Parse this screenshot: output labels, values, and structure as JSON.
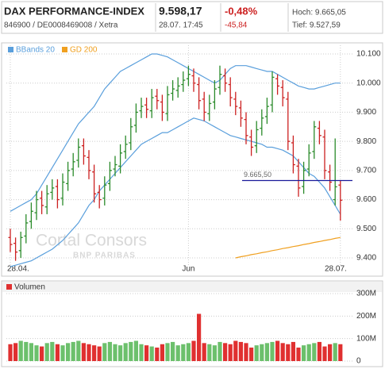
{
  "header": {
    "title": "DAX PERFORMANCE-INDEX",
    "price": "9.598,17",
    "change_pct": "-0,48%",
    "high": "Hoch: 9.665,05",
    "id": "846900 / DE0008469008 / Xetra",
    "time": "28.07. 17:45",
    "change_abs": "-45,84",
    "low": "Tief: 9.527,59"
  },
  "watermark": {
    "line1": "Cortal Consors",
    "line2": "BNP PARIBAS"
  },
  "chart_data": [
    {
      "type": "ohlc",
      "up_color": "#2a8a2a",
      "down_color": "#cc2020",
      "ylim": [
        9370,
        10130
      ],
      "yticks": [
        {
          "value": 9400,
          "label": "9.400"
        },
        {
          "value": 9500,
          "label": "9.500"
        },
        {
          "value": 9600,
          "label": "9.600"
        },
        {
          "value": 9700,
          "label": "9.700"
        },
        {
          "value": 9800,
          "label": "9.800"
        },
        {
          "value": 9900,
          "label": "9.900"
        },
        {
          "value": 10000,
          "label": "10.000"
        },
        {
          "value": 10100,
          "label": "10.100"
        }
      ],
      "grid": true,
      "legend": "top-left",
      "annotation": {
        "value": 9665.5,
        "label": "9.665,50",
        "color": "#1a1a9a"
      },
      "categories": [
        "28.04.",
        null,
        null,
        null,
        null,
        null,
        null,
        null,
        null,
        null,
        null,
        null,
        null,
        null,
        null,
        null,
        null,
        null,
        null,
        null,
        null,
        null,
        null,
        null,
        null,
        null,
        null,
        null,
        null,
        null,
        null,
        null,
        null,
        null,
        "Jun",
        null,
        null,
        null,
        null,
        null,
        null,
        null,
        null,
        null,
        null,
        null,
        null,
        null,
        null,
        null,
        null,
        null,
        null,
        null,
        null,
        null,
        null,
        null,
        null,
        null,
        null,
        null,
        null,
        "28.07."
      ],
      "open": [
        9470,
        9450,
        9425,
        9475,
        9525,
        9555,
        9605,
        9575,
        9625,
        9645,
        9605,
        9655,
        9705,
        9735,
        9785,
        9745,
        9695,
        9625,
        9605,
        9655,
        9705,
        9715,
        9765,
        9795,
        9855,
        9905,
        9925,
        9905,
        9955,
        9935,
        9895,
        9965,
        9975,
        9995,
        10015,
        10025,
        9995,
        9945,
        9895,
        9935,
        9985,
        10025,
        9995,
        9945,
        9915,
        9875,
        9815,
        9785,
        9845,
        9885,
        9925,
        10015,
        9985,
        9945,
        9795,
        9715,
        9645,
        9705,
        9765,
        9845,
        9815,
        9695,
        9600,
        9650
      ],
      "high": [
        9500,
        9470,
        9490,
        9550,
        9590,
        9630,
        9630,
        9650,
        9670,
        9670,
        9690,
        9730,
        9760,
        9810,
        9810,
        9770,
        9720,
        9650,
        9680,
        9730,
        9750,
        9790,
        9820,
        9880,
        9930,
        9950,
        9950,
        9980,
        9980,
        9960,
        9990,
        10010,
        10020,
        10040,
        10060,
        10050,
        10020,
        9970,
        9960,
        10010,
        10060,
        10050,
        10020,
        9970,
        9940,
        9900,
        9840,
        9870,
        9910,
        9950,
        10040,
        10030,
        10010,
        9970,
        9820,
        9740,
        9730,
        9790,
        9870,
        9870,
        9840,
        9720,
        9810,
        9665
      ],
      "low": [
        9420,
        9390,
        9400,
        9450,
        9500,
        9530,
        9550,
        9550,
        9600,
        9570,
        9580,
        9630,
        9680,
        9710,
        9720,
        9670,
        9590,
        9570,
        9580,
        9630,
        9680,
        9690,
        9740,
        9770,
        9830,
        9880,
        9880,
        9880,
        9910,
        9870,
        9870,
        9940,
        9950,
        9970,
        9990,
        9970,
        9910,
        9870,
        9870,
        9910,
        9960,
        9970,
        9920,
        9890,
        9850,
        9790,
        9750,
        9760,
        9820,
        9860,
        9900,
        9960,
        9920,
        9770,
        9690,
        9610,
        9620,
        9680,
        9740,
        9790,
        9670,
        9630,
        9580,
        9528
      ],
      "close": [
        9446,
        9420,
        9470,
        9520,
        9560,
        9600,
        9580,
        9620,
        9640,
        9600,
        9660,
        9700,
        9730,
        9780,
        9750,
        9700,
        9620,
        9600,
        9650,
        9700,
        9720,
        9760,
        9790,
        9850,
        9900,
        9920,
        9910,
        9950,
        9940,
        9900,
        9960,
        9980,
        9990,
        10010,
        10030,
        10000,
        9940,
        9900,
        9930,
        9980,
        10030,
        10000,
        9950,
        9920,
        9880,
        9820,
        9780,
        9840,
        9880,
        9920,
        10020,
        9990,
        9950,
        9800,
        9720,
        9640,
        9700,
        9760,
        9850,
        9820,
        9700,
        9660,
        9644,
        9598
      ],
      "series": [
        {
          "name": "BBands 20",
          "color": "#5a9fdc",
          "upper": [
            9560,
            9570,
            9580,
            9590,
            9600,
            9620,
            9650,
            9680,
            9710,
            9740,
            9770,
            9800,
            9830,
            9860,
            9880,
            9900,
            9920,
            9950,
            9980,
            10000,
            10020,
            10040,
            10050,
            10060,
            10070,
            10080,
            10090,
            10100,
            10100,
            10095,
            10090,
            10080,
            10070,
            10060,
            10050,
            10040,
            10030,
            10020,
            10010,
            10000,
            10010,
            10030,
            10050,
            10060,
            10060,
            10060,
            10055,
            10050,
            10045,
            10040,
            10040,
            10030,
            10020,
            10010,
            10000,
            9990,
            9985,
            9980,
            9980,
            9985,
            9990,
            9995,
            10000,
            10000
          ],
          "lower": [
            9370,
            9375,
            9380,
            9385,
            9390,
            9400,
            9410,
            9420,
            9430,
            9445,
            9460,
            9480,
            9500,
            9520,
            9550,
            9580,
            9600,
            9630,
            9650,
            9670,
            9690,
            9710,
            9730,
            9750,
            9770,
            9790,
            9800,
            9810,
            9820,
            9830,
            9830,
            9840,
            9850,
            9860,
            9870,
            9880,
            9875,
            9870,
            9860,
            9850,
            9840,
            9830,
            9820,
            9815,
            9810,
            9805,
            9800,
            9795,
            9790,
            9780,
            9780,
            9775,
            9770,
            9760,
            9750,
            9730,
            9710,
            9690,
            9680,
            9660,
            9640,
            9610,
            9580,
            9550
          ]
        },
        {
          "name": "GD 200",
          "color": "#f0a020",
          "values": [
            null,
            null,
            null,
            null,
            null,
            null,
            null,
            null,
            null,
            null,
            null,
            null,
            null,
            null,
            null,
            null,
            null,
            null,
            null,
            null,
            null,
            null,
            null,
            null,
            null,
            null,
            null,
            null,
            null,
            null,
            null,
            null,
            null,
            null,
            null,
            null,
            null,
            null,
            null,
            null,
            null,
            null,
            null,
            9400,
            9404,
            9407,
            9411,
            9414,
            9418,
            9421,
            9425,
            9428,
            9432,
            9435,
            9439,
            9442,
            9446,
            9449,
            9453,
            9456,
            9460,
            9463,
            9467,
            9470
          ]
        }
      ]
    },
    {
      "type": "bar",
      "title": "Volumen",
      "up_color": "#6cc06c",
      "down_color": "#e03030",
      "ylim": [
        0,
        300000000
      ],
      "yticks": [
        0,
        {
          "value": 100000000,
          "label": "100M"
        },
        {
          "value": 200000000,
          "label": "200M"
        },
        {
          "value": 300000000,
          "label": "300M"
        }
      ],
      "values": [
        75000000,
        80000000,
        90000000,
        85000000,
        80000000,
        70000000,
        65000000,
        80000000,
        85000000,
        75000000,
        70000000,
        80000000,
        85000000,
        90000000,
        80000000,
        75000000,
        70000000,
        65000000,
        80000000,
        85000000,
        75000000,
        70000000,
        80000000,
        85000000,
        90000000,
        75000000,
        70000000,
        65000000,
        60000000,
        75000000,
        80000000,
        85000000,
        70000000,
        75000000,
        80000000,
        90000000,
        210000000,
        80000000,
        75000000,
        70000000,
        85000000,
        80000000,
        75000000,
        90000000,
        85000000,
        80000000,
        60000000,
        70000000,
        75000000,
        80000000,
        85000000,
        90000000,
        80000000,
        75000000,
        85000000,
        60000000,
        70000000,
        75000000,
        80000000,
        85000000,
        65000000,
        75000000,
        80000000,
        75000000
      ]
    }
  ]
}
